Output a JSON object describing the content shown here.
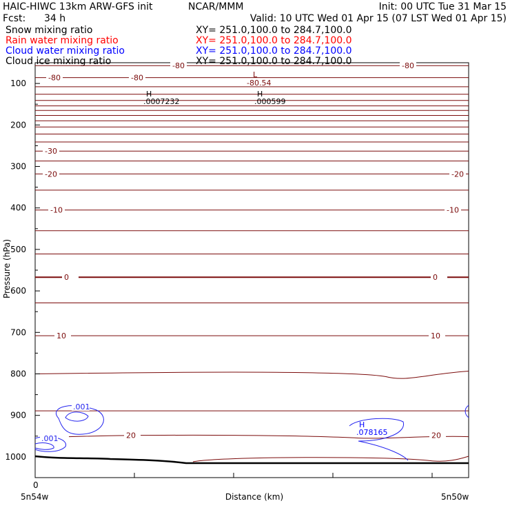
{
  "header": {
    "title": "HAIC-HIWC 13km ARW-GFS init",
    "org": "NCAR/MMM",
    "init": "Init: 00 UTC Tue 31 Mar 15",
    "fcst_label": "Fcst:",
    "fcst_value": "34 h",
    "valid": "Valid: 10 UTC Wed 01 Apr 15 (07 LST Wed 01 Apr 15)"
  },
  "legend": [
    {
      "name": "Snow mixing ratio",
      "xy": "XY= 251.0,100.0 to 284.7,100.0",
      "color": "#000000"
    },
    {
      "name": "Rain water mixing ratio",
      "xy": "XY= 251.0,100.0 to 284.7,100.0",
      "color": "#ff0000"
    },
    {
      "name": "Cloud water mixing ratio",
      "xy": "XY= 251.0,100.0 to 284.7,100.0",
      "color": "#0000ff"
    },
    {
      "name": "Cloud ice mixing ratio",
      "xy": "XY= 251.0,100.0 to 284.7,100.0",
      "color": "#000000"
    }
  ],
  "axes": {
    "ylabel": "Pressure (hPa)",
    "xlabel": "Distance (km)",
    "x_zero": "0",
    "x_left": "5n54w",
    "x_right": "5n50w",
    "yticks": [
      "100",
      "200",
      "300",
      "400",
      "500",
      "600",
      "700",
      "800",
      "900",
      "1000"
    ]
  },
  "colors": {
    "temperature": "#7a0a0a",
    "cloud_water": "#2222ee",
    "terrain": "#000000"
  },
  "chart_data": {
    "type": "contour",
    "y_axis": {
      "label": "Pressure (hPa)",
      "range": [
        1050,
        50
      ],
      "ticks": [
        100,
        200,
        300,
        400,
        500,
        600,
        700,
        800,
        900,
        1000
      ],
      "scale": "linear"
    },
    "x_axis": {
      "label": "Distance (km)",
      "start": "5n54w",
      "end": "5n50w"
    },
    "temperature_isotherms_hPa": [
      57,
      86,
      108,
      126,
      141,
      154,
      165,
      177,
      190,
      205,
      222,
      241,
      263,
      287,
      318,
      357,
      405,
      455,
      511,
      567,
      629,
      708,
      800,
      889,
      948
    ],
    "temperature_labels": [
      "-80",
      "-80",
      "-80",
      "-80",
      "-30",
      "-20",
      "-20",
      "-10",
      "-10",
      "0",
      "0",
      "10",
      "10",
      "20",
      "20"
    ],
    "extrema": [
      {
        "type": "L",
        "value": "-80.54"
      },
      {
        "type": "H",
        "value": ".0007232"
      },
      {
        "type": "H",
        "value": ".000599"
      },
      {
        "type": "H",
        "value": ".078165"
      }
    ],
    "cloud_water_labels": [
      ".001",
      ".001"
    ]
  }
}
